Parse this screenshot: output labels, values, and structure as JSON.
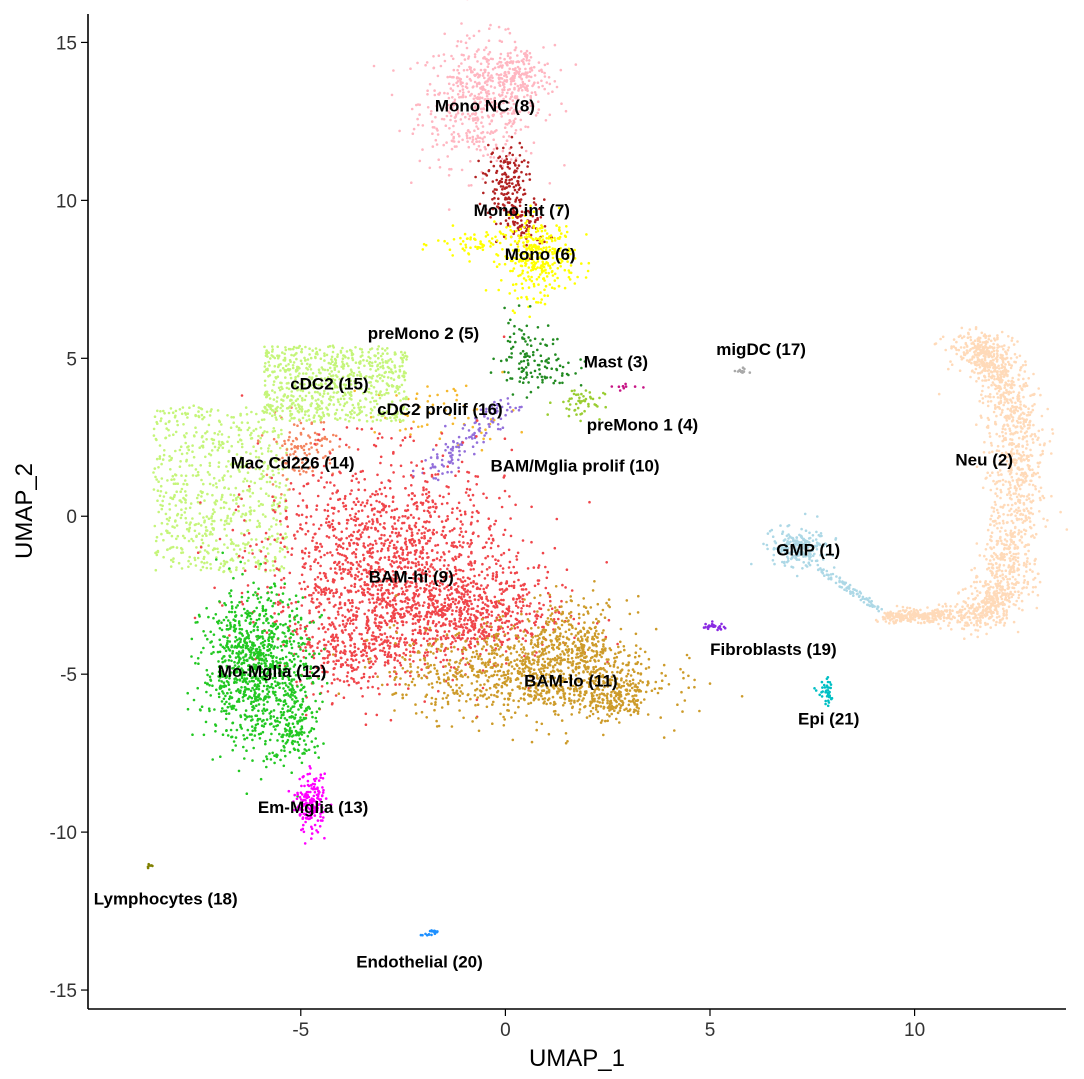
{
  "chart_data": {
    "type": "scatter",
    "title": "",
    "xlabel": "UMAP_1",
    "ylabel": "UMAP_2",
    "xlim": [
      -10.2,
      13.7
    ],
    "ylim": [
      -15.6,
      15.9
    ],
    "xticks": [
      -5,
      0,
      5,
      10
    ],
    "xtick_labels": [
      "-5",
      "0",
      "5",
      "10"
    ],
    "yticks": [
      15,
      10,
      5,
      0,
      -5,
      -10,
      -15
    ],
    "ytick_labels": [
      "15",
      "10",
      "5",
      "0",
      "-5",
      "-10",
      "-15"
    ],
    "grid": false,
    "legend": "none",
    "clusters": [
      {
        "id": 1,
        "name": "GMP (1)",
        "color": "#add8e6",
        "label_x": 7.4,
        "label_y": -1.05
      },
      {
        "id": 2,
        "name": "Neu (2)",
        "color": "#ffdab9",
        "label_x": 11.7,
        "label_y": 1.8
      },
      {
        "id": 3,
        "name": "Mast (3)",
        "color": "#c71585",
        "label_x": 2.7,
        "label_y": 4.9
      },
      {
        "id": 4,
        "name": "preMono 1 (4)",
        "color": "#9acd32",
        "label_x": 3.35,
        "label_y": 2.9
      },
      {
        "id": 5,
        "name": "preMono 2 (5)",
        "color": "#228b22",
        "label_x": -2.0,
        "label_y": 5.8
      },
      {
        "id": 6,
        "name": "Mono (6)",
        "color": "#ffff00",
        "label_x": 0.85,
        "label_y": 8.3
      },
      {
        "id": 7,
        "name": "Mono int (7)",
        "color": "#b22222",
        "label_x": 0.4,
        "label_y": 9.7
      },
      {
        "id": 8,
        "name": "Mono NC (8)",
        "color": "#ffb6c1",
        "label_x": -0.5,
        "label_y": 13.0
      },
      {
        "id": 9,
        "name": "BAM-hi (9)",
        "color": "#f0454a",
        "label_x": -2.3,
        "label_y": -1.9
      },
      {
        "id": 10,
        "name": "BAM/Mglia prolif (10)",
        "color": "#9370db",
        "label_x": 1.7,
        "label_y": 1.6
      },
      {
        "id": 11,
        "name": "BAM-lo (11)",
        "color": "#cd9b2a",
        "label_x": 1.6,
        "label_y": -5.2
      },
      {
        "id": 12,
        "name": "Mo-Mglia (12)",
        "color": "#22c822",
        "label_x": -5.7,
        "label_y": -4.9
      },
      {
        "id": 13,
        "name": "Em-Mglia (13)",
        "color": "#ff00ff",
        "label_x": -4.7,
        "label_y": -9.2
      },
      {
        "id": 14,
        "name": "Mac Cd226 (14)",
        "color": "#f4845f",
        "label_x": -5.2,
        "label_y": 1.7
      },
      {
        "id": 15,
        "name": "cDC2 (15)",
        "color": "#c5f57a",
        "label_x": -4.3,
        "label_y": 4.2
      },
      {
        "id": 16,
        "name": "cDC2 prolif (16)",
        "color": "#f5b82e",
        "label_x": -1.6,
        "label_y": 3.4
      },
      {
        "id": 17,
        "name": "migDC (17)",
        "color": "#a9a9a9",
        "label_x": 6.25,
        "label_y": 5.3
      },
      {
        "id": 18,
        "name": "Lymphocytes (18)",
        "color": "#808000",
        "label_x": -8.3,
        "label_y": -12.1
      },
      {
        "id": 19,
        "name": "Fibroblasts (19)",
        "color": "#8a2be2",
        "label_x": 6.55,
        "label_y": -4.2
      },
      {
        "id": 20,
        "name": "Endothelial (20)",
        "color": "#1e90ff",
        "label_x": -2.1,
        "label_y": -14.1
      },
      {
        "id": 21,
        "name": "Epi (21)",
        "color": "#00bfc4",
        "label_x": 7.9,
        "label_y": -6.4
      }
    ]
  }
}
